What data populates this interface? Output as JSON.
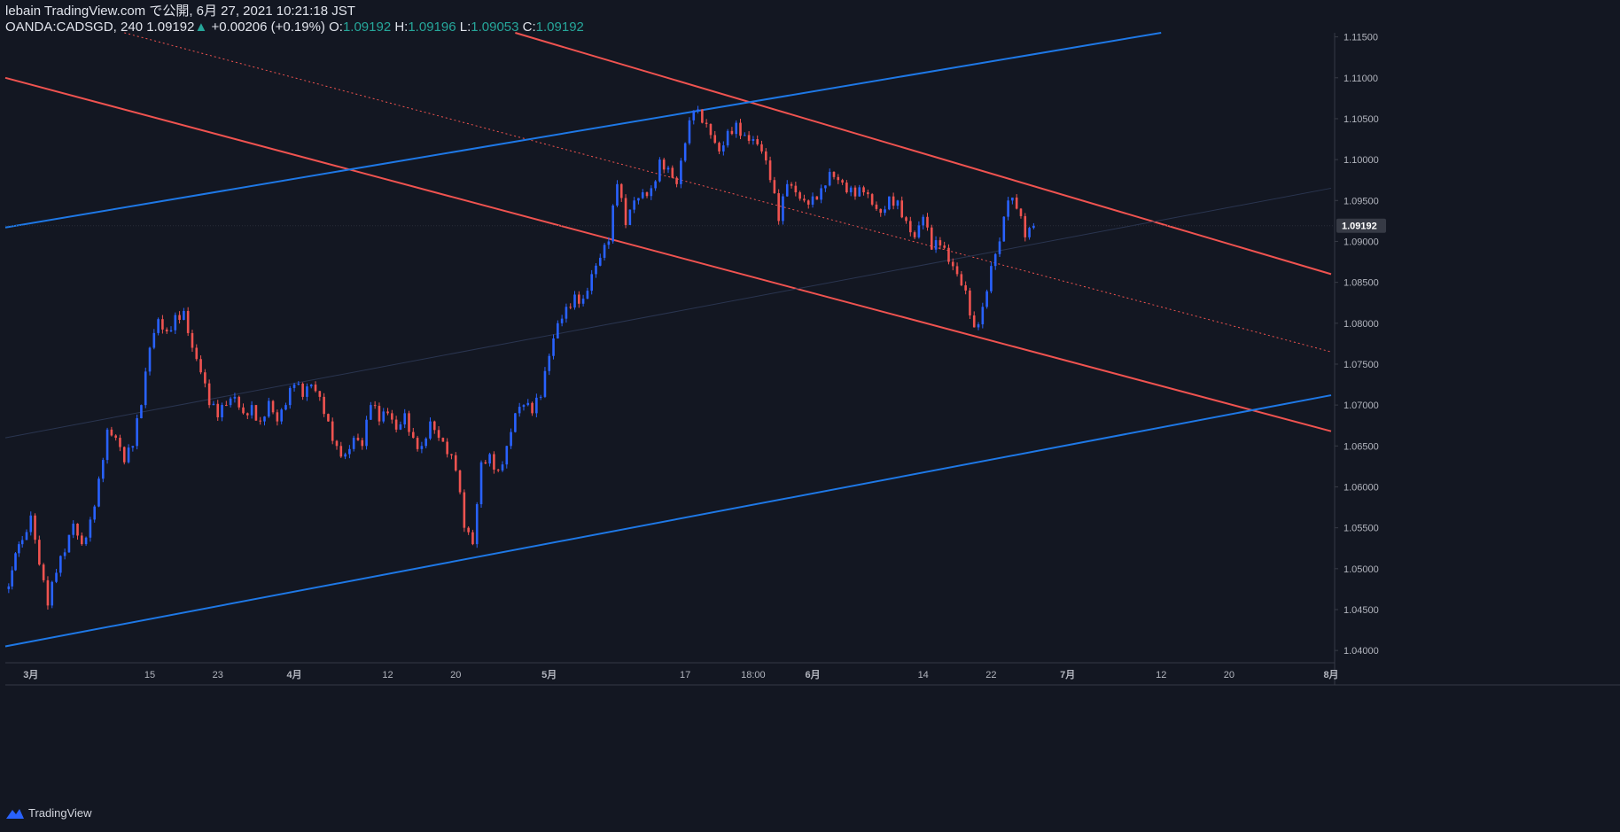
{
  "header": {
    "line1": "lebain TradingView.com で公開, 6月 27, 2021 10:21:18 JST",
    "symbol": "OANDA:CADSGD, 240",
    "last": "1.09192",
    "arrow": "▲",
    "change": "+0.00206 (+0.19%)",
    "o_label": "O:",
    "o": "1.09192",
    "h_label": "H:",
    "h": "1.09196",
    "l_label": "L:",
    "l": "1.09053",
    "c_label": "C:",
    "c": "1.09192"
  },
  "branding": {
    "name": "TradingView",
    "icon": "tradingview-logo-icon"
  },
  "colors": {
    "background": "#131722",
    "up": "#2962ff",
    "down": "#ef5350",
    "channel_red": "#f05350",
    "channel_blue": "#1e78e6",
    "axis_text": "#b2b5be",
    "change": "#26a69a"
  },
  "chart_data": {
    "type": "candlestick",
    "symbol": "OANDA:CADSGD",
    "interval": "240",
    "x_tick_labels": [
      "3月",
      "15",
      "23",
      "4月",
      "12",
      "20",
      "5月",
      "17",
      "18:00",
      "6月",
      "14",
      "22",
      "7月",
      "12",
      "20",
      "8月"
    ],
    "y_tick_labels": [
      "1.11500",
      "1.11000",
      "1.10500",
      "1.10000",
      "1.09500",
      "1.09000",
      "1.08500",
      "1.08000",
      "1.07500",
      "1.07000",
      "1.06500",
      "1.06000",
      "1.05500",
      "1.05000",
      "1.04500",
      "1.04000"
    ],
    "ylim": [
      1.0385,
      1.1155
    ],
    "last_price_label": "1.09192",
    "price_path": [
      [
        "2021-02-26",
        1.0475
      ],
      [
        "2021-02-28",
        1.0535
      ],
      [
        "2021-03-01",
        1.0565
      ],
      [
        "2021-03-02",
        1.0505
      ],
      [
        "2021-03-03",
        1.0455
      ],
      [
        "2021-03-04",
        1.0495
      ],
      [
        "2021-03-05",
        1.052
      ],
      [
        "2021-03-06",
        1.0555
      ],
      [
        "2021-03-07",
        1.053
      ],
      [
        "2021-03-08",
        1.056
      ],
      [
        "2021-03-09",
        1.061
      ],
      [
        "2021-03-10",
        1.067
      ],
      [
        "2021-03-11",
        1.066
      ],
      [
        "2021-03-12",
        1.063
      ],
      [
        "2021-03-13",
        1.065
      ],
      [
        "2021-03-14",
        1.07
      ],
      [
        "2021-03-15",
        1.077
      ],
      [
        "2021-03-16",
        1.0805
      ],
      [
        "2021-03-17",
        1.079
      ],
      [
        "2021-03-18",
        1.081
      ],
      [
        "2021-03-19",
        1.0815
      ],
      [
        "2021-03-20",
        1.077
      ],
      [
        "2021-03-21",
        1.074
      ],
      [
        "2021-03-22",
        1.07
      ],
      [
        "2021-03-23",
        1.0685
      ],
      [
        "2021-03-24",
        1.07
      ],
      [
        "2021-03-25",
        1.071
      ],
      [
        "2021-03-26",
        1.069
      ],
      [
        "2021-03-27",
        1.07
      ],
      [
        "2021-03-28",
        1.068
      ],
      [
        "2021-03-29",
        1.0705
      ],
      [
        "2021-03-30",
        1.068
      ],
      [
        "2021-03-31",
        1.07
      ],
      [
        "2021-04-01",
        1.0725
      ],
      [
        "2021-04-02",
        1.071
      ],
      [
        "2021-04-03",
        1.0725
      ],
      [
        "2021-04-04",
        1.071
      ],
      [
        "2021-04-05",
        1.068
      ],
      [
        "2021-04-06",
        1.065
      ],
      [
        "2021-04-07",
        1.064
      ],
      [
        "2021-04-08",
        1.066
      ],
      [
        "2021-04-09",
        1.065
      ],
      [
        "2021-04-10",
        1.07
      ],
      [
        "2021-04-11",
        1.068
      ],
      [
        "2021-04-12",
        1.069
      ],
      [
        "2021-04-13",
        1.067
      ],
      [
        "2021-04-14",
        1.069
      ],
      [
        "2021-04-15",
        1.066
      ],
      [
        "2021-04-16",
        1.065
      ],
      [
        "2021-04-17",
        1.068
      ],
      [
        "2021-04-18",
        1.066
      ],
      [
        "2021-04-19",
        1.064
      ],
      [
        "2021-04-20",
        1.062
      ],
      [
        "2021-04-21",
        1.055
      ],
      [
        "2021-04-22",
        1.053
      ],
      [
        "2021-04-23",
        1.063
      ],
      [
        "2021-04-24",
        1.064
      ],
      [
        "2021-04-25",
        1.062
      ],
      [
        "2021-04-26",
        1.065
      ],
      [
        "2021-04-27",
        1.069
      ],
      [
        "2021-04-28",
        1.07
      ],
      [
        "2021-04-29",
        1.069
      ],
      [
        "2021-04-30",
        1.071
      ],
      [
        "2021-05-01",
        1.076
      ],
      [
        "2021-05-02",
        1.08
      ],
      [
        "2021-05-03",
        1.082
      ],
      [
        "2021-05-04",
        1.0835
      ],
      [
        "2021-05-05",
        1.083
      ],
      [
        "2021-05-06",
        1.086
      ],
      [
        "2021-05-07",
        1.088
      ],
      [
        "2021-05-08",
        1.09
      ],
      [
        "2021-05-09",
        1.097
      ],
      [
        "2021-05-10",
        1.092
      ],
      [
        "2021-05-11",
        1.095
      ],
      [
        "2021-05-12",
        1.096
      ],
      [
        "2021-05-13",
        1.0965
      ],
      [
        "2021-05-14",
        1.1
      ],
      [
        "2021-05-15",
        1.099
      ],
      [
        "2021-05-16",
        1.097
      ],
      [
        "2021-05-17",
        1.102
      ],
      [
        "2021-05-18",
        1.106
      ],
      [
        "2021-05-19",
        1.1045
      ],
      [
        "2021-05-20",
        1.103
      ],
      [
        "2021-05-21",
        1.101
      ],
      [
        "2021-05-22",
        1.1035
      ],
      [
        "2021-05-23",
        1.1045
      ],
      [
        "2021-05-24",
        1.103
      ],
      [
        "2021-05-25",
        1.1025
      ],
      [
        "2021-05-26",
        1.101
      ],
      [
        "2021-05-27",
        1.0975
      ],
      [
        "2021-05-28",
        1.0925
      ],
      [
        "2021-05-29",
        1.097
      ],
      [
        "2021-05-30",
        1.096
      ],
      [
        "2021-05-31",
        1.095
      ],
      [
        "2021-06-01",
        1.0955
      ],
      [
        "2021-06-02",
        1.0965
      ],
      [
        "2021-06-03",
        1.0985
      ],
      [
        "2021-06-04",
        1.0975
      ],
      [
        "2021-06-05",
        1.096
      ],
      [
        "2021-06-06",
        1.0955
      ],
      [
        "2021-06-07",
        1.096
      ],
      [
        "2021-06-08",
        1.0945
      ],
      [
        "2021-06-09",
        1.0935
      ],
      [
        "2021-06-10",
        1.0955
      ],
      [
        "2021-06-11",
        1.095
      ],
      [
        "2021-06-12",
        1.0925
      ],
      [
        "2021-06-13",
        1.0905
      ],
      [
        "2021-06-14",
        1.093
      ],
      [
        "2021-06-15",
        1.089
      ],
      [
        "2021-06-16",
        1.0895
      ],
      [
        "2021-06-17",
        1.0875
      ],
      [
        "2021-06-18",
        1.086
      ],
      [
        "2021-06-19",
        1.084
      ],
      [
        "2021-06-20",
        1.0795
      ],
      [
        "2021-06-21",
        1.082
      ],
      [
        "2021-06-22",
        1.087
      ],
      [
        "2021-06-23",
        1.09
      ],
      [
        "2021-06-24",
        1.095
      ],
      [
        "2021-06-25",
        1.094
      ],
      [
        "2021-06-26",
        1.0905
      ],
      [
        "2021-06-27",
        1.0919
      ]
    ]
  }
}
